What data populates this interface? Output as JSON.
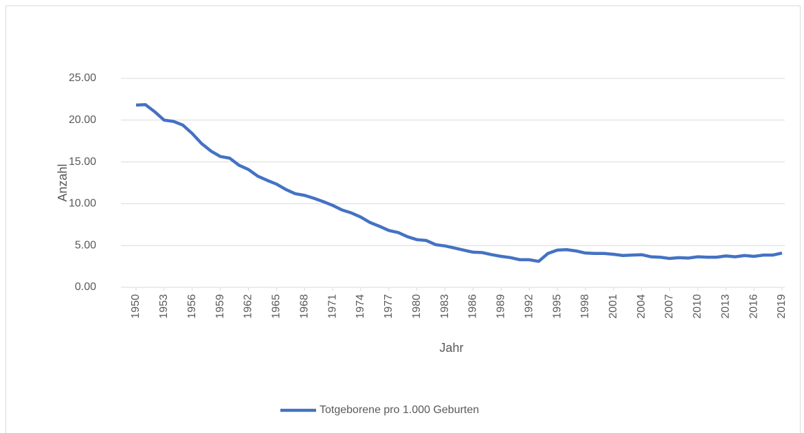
{
  "chart_data": {
    "type": "line",
    "x_label": "Jahr",
    "y_label": "Anzahl",
    "x": [
      1950,
      1951,
      1952,
      1953,
      1954,
      1955,
      1956,
      1957,
      1958,
      1959,
      1960,
      1961,
      1962,
      1963,
      1964,
      1965,
      1966,
      1967,
      1968,
      1969,
      1970,
      1971,
      1972,
      1973,
      1974,
      1975,
      1976,
      1977,
      1978,
      1979,
      1980,
      1981,
      1982,
      1983,
      1984,
      1985,
      1986,
      1987,
      1988,
      1989,
      1990,
      1991,
      1992,
      1993,
      1994,
      1995,
      1996,
      1997,
      1998,
      1999,
      2000,
      2001,
      2002,
      2003,
      2004,
      2005,
      2006,
      2007,
      2008,
      2009,
      2010,
      2011,
      2012,
      2013,
      2014,
      2015,
      2016,
      2017,
      2018,
      2019
    ],
    "series": [
      {
        "name": "Totgeborene pro 1.000 Geburten",
        "color": "#4472c4",
        "values": [
          21.8,
          21.85,
          21.0,
          20.0,
          19.85,
          19.4,
          18.4,
          17.2,
          16.3,
          15.65,
          15.45,
          14.6,
          14.1,
          13.3,
          12.8,
          12.35,
          11.7,
          11.2,
          11.0,
          10.65,
          10.25,
          9.8,
          9.25,
          8.9,
          8.4,
          7.75,
          7.3,
          6.8,
          6.55,
          6.05,
          5.7,
          5.6,
          5.1,
          4.95,
          4.7,
          4.45,
          4.2,
          4.15,
          3.9,
          3.7,
          3.55,
          3.3,
          3.3,
          3.1,
          4.05,
          4.45,
          4.5,
          4.35,
          4.1,
          4.05,
          4.05,
          3.95,
          3.8,
          3.85,
          3.9,
          3.65,
          3.6,
          3.45,
          3.55,
          3.5,
          3.65,
          3.6,
          3.6,
          3.75,
          3.65,
          3.8,
          3.7,
          3.85,
          3.85,
          4.1
        ]
      }
    ],
    "xlim": [
      1950,
      2019
    ],
    "xticks": [
      1950,
      1953,
      1956,
      1959,
      1962,
      1965,
      1968,
      1971,
      1974,
      1977,
      1980,
      1983,
      1986,
      1989,
      1992,
      1995,
      1998,
      2001,
      2004,
      2007,
      2010,
      2013,
      2016,
      2019
    ],
    "ylim": [
      0,
      25
    ],
    "yticks": [
      {
        "value": 0,
        "label": "0.00"
      },
      {
        "value": 5,
        "label": "5.00"
      },
      {
        "value": 10,
        "label": "10.00"
      },
      {
        "value": 15,
        "label": "15.00"
      },
      {
        "value": 20,
        "label": "20.00"
      },
      {
        "value": 25,
        "label": "25.00"
      }
    ],
    "grid": true,
    "legend": "bottom"
  }
}
